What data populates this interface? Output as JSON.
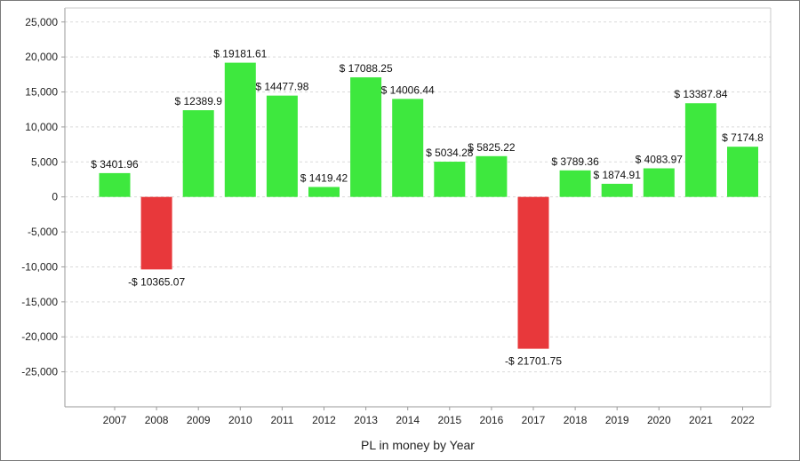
{
  "chart_data": {
    "type": "bar",
    "title": "",
    "xlabel": "PL in money by Year",
    "ylabel": "",
    "categories": [
      "2007",
      "2008",
      "2009",
      "2010",
      "2011",
      "2012",
      "2013",
      "2014",
      "2015",
      "2016",
      "2017",
      "2018",
      "2019",
      "2020",
      "2021",
      "2022"
    ],
    "values": [
      3401.96,
      -10365.07,
      12389.9,
      19181.61,
      14477.98,
      1419.42,
      17088.25,
      14006.44,
      5034.28,
      5825.22,
      -21701.75,
      3789.36,
      1874.91,
      4083.97,
      13387.84,
      7174.8
    ],
    "data_labels": [
      "$ 3401.96",
      "-$ 10365.07",
      "$ 12389.9",
      "$ 19181.61",
      "$ 14477.98",
      "$ 1419.42",
      "$ 17088.25",
      "$ 14006.44",
      "$ 5034.28",
      "$ 5825.22",
      "-$ 21701.75",
      "$ 3789.36",
      "$ 1874.91",
      "$ 4083.97",
      "$ 13387.84",
      "$ 7174.8"
    ],
    "ylim": [
      -30000,
      27000
    ],
    "y_ticks": [
      25000,
      20000,
      15000,
      10000,
      5000,
      0,
      -5000,
      -10000,
      -15000,
      -20000,
      -25000
    ],
    "y_tick_labels": [
      "25,000",
      "20,000",
      "15,000",
      "10,000",
      "5,000",
      "0",
      "-5,000",
      "-10,000",
      "-15,000",
      "-20,000",
      "-25,000"
    ],
    "grid": true,
    "grid_style": "dashed-horizontal",
    "legend": "none",
    "colors": {
      "positive": "#3ee83e",
      "negative": "#e8383b",
      "grid": "#d9d9d9",
      "axis": "#9a9a9a",
      "frame": "#7a7a7a"
    }
  }
}
